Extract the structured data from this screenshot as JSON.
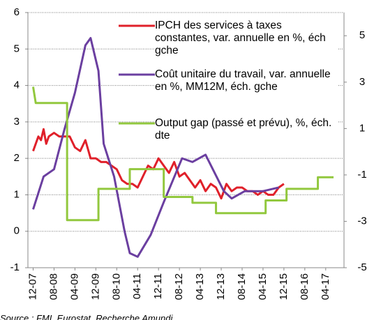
{
  "chart_data": {
    "type": "line",
    "source": "Source : FMI, Eurostat, Recherche Amundi",
    "xlim": [
      -2,
      119
    ],
    "xticks": [
      {
        "value": 0,
        "label": "12-07"
      },
      {
        "value": 8,
        "label": "08-08"
      },
      {
        "value": 16,
        "label": "04-09"
      },
      {
        "value": 24,
        "label": "12-09"
      },
      {
        "value": 32,
        "label": "08-10"
      },
      {
        "value": 40,
        "label": "04-11"
      },
      {
        "value": 48,
        "label": "12-11"
      },
      {
        "value": 56,
        "label": "08-12"
      },
      {
        "value": 64,
        "label": "04-13"
      },
      {
        "value": 72,
        "label": "12-13"
      },
      {
        "value": 80,
        "label": "08-14"
      },
      {
        "value": 88,
        "label": "04-15"
      },
      {
        "value": 96,
        "label": "12-15"
      },
      {
        "value": 104,
        "label": "08-16"
      },
      {
        "value": 112,
        "label": "04-17"
      }
    ],
    "ylim": [
      -1,
      6
    ],
    "yticks": [
      -1,
      0,
      1,
      2,
      3,
      4,
      5,
      6
    ],
    "y2lim": [
      -5,
      6
    ],
    "y2ticks": [
      -5,
      -3,
      -1,
      1,
      3,
      5
    ],
    "grid": true,
    "series": [
      {
        "name": "IPCH des services à taxes constantes, var. annuelle en %, éch gche",
        "color": "#e0202a",
        "x": [
          0,
          2,
          3,
          4,
          5,
          6,
          8,
          10,
          12,
          14,
          16,
          18,
          20,
          22,
          24,
          26,
          28,
          30,
          32,
          34,
          36,
          38,
          40,
          42,
          44,
          46,
          48,
          50,
          52,
          54,
          56,
          58,
          60,
          62,
          64,
          66,
          68,
          70,
          72,
          74,
          76,
          78,
          80,
          82,
          84,
          86,
          88,
          90,
          92,
          94,
          96
        ],
        "values": [
          2.2,
          2.6,
          2.5,
          2.8,
          2.4,
          2.6,
          2.7,
          2.6,
          2.6,
          2.6,
          2.3,
          2.2,
          2.5,
          2.0,
          2.0,
          1.9,
          1.9,
          1.8,
          1.7,
          1.4,
          1.3,
          1.3,
          1.2,
          1.5,
          1.8,
          1.7,
          2.0,
          1.8,
          1.6,
          1.9,
          1.5,
          1.6,
          1.4,
          1.2,
          1.4,
          1.1,
          1.3,
          1.2,
          0.9,
          1.3,
          1.1,
          1.2,
          1.2,
          1.1,
          1.1,
          1.0,
          1.1,
          1.0,
          1.0,
          1.2,
          1.3
        ]
      },
      {
        "name": "Coût unitaire du travail, var. annuelle en %, MM12M, éch. gche",
        "color": "#6b3fa0",
        "x": [
          0,
          4,
          8,
          12,
          16,
          20,
          22,
          25,
          27,
          31,
          35,
          37,
          40,
          45,
          50,
          57,
          61,
          66,
          73,
          76,
          81,
          88,
          94
        ],
        "values": [
          0.6,
          1.5,
          1.7,
          2.8,
          3.8,
          5.1,
          5.3,
          4.4,
          2.4,
          1.5,
          0.0,
          -0.6,
          -0.7,
          -0.1,
          0.8,
          2.0,
          1.9,
          2.1,
          1.1,
          0.9,
          1.1,
          1.1,
          1.2
        ]
      },
      {
        "name": "Output gap (passé et prévu), %, éch. dte",
        "color": "#92c83e",
        "axis": "y2",
        "x": [
          0,
          1,
          13,
          13,
          25,
          25,
          37,
          37,
          50,
          50,
          61,
          61,
          70,
          70,
          89,
          89,
          97,
          97,
          109,
          109,
          115
        ],
        "values": [
          2.8,
          2.1,
          2.1,
          -2.95,
          -2.95,
          -1.6,
          -1.6,
          -0.75,
          -0.75,
          -1.95,
          -1.95,
          -2.2,
          -2.2,
          -2.65,
          -2.65,
          -2.1,
          -2.1,
          -1.6,
          -1.6,
          -1.1,
          -1.1
        ]
      }
    ]
  }
}
